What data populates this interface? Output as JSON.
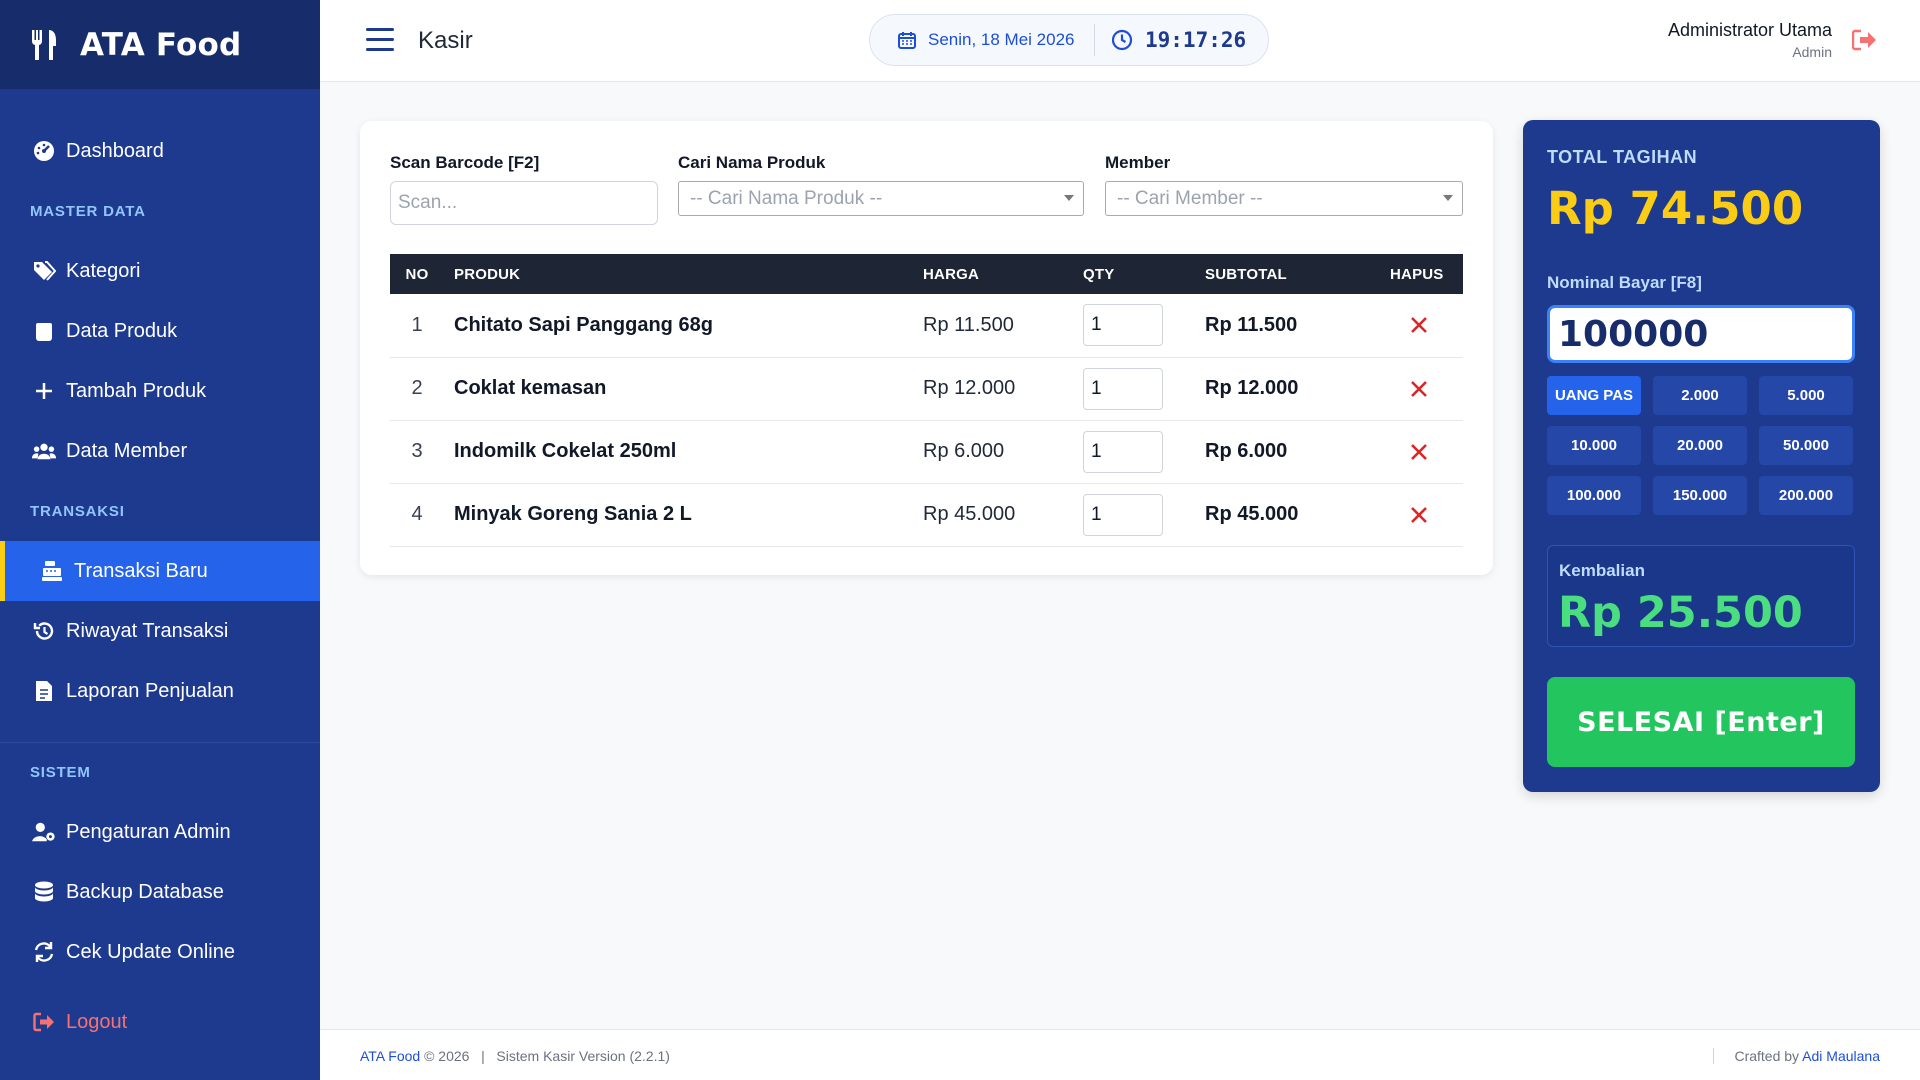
{
  "app": {
    "name": "ATA Food"
  },
  "sidebar": {
    "dashboard": "Dashboard",
    "section_master": "MASTER DATA",
    "kategori": "Kategori",
    "data_produk": "Data Produk",
    "tambah_produk": "Tambah Produk",
    "data_member": "Data Member",
    "section_transaksi": "TRANSAKSI",
    "transaksi_baru": "Transaksi Baru",
    "riwayat": "Riwayat Transaksi",
    "laporan": "Laporan Penjualan",
    "section_sistem": "SISTEM",
    "pengaturan": "Pengaturan Admin",
    "backup": "Backup Database",
    "update": "Cek Update Online",
    "logout": "Logout"
  },
  "header": {
    "title": "Kasir",
    "date": "Senin, 18 Mei 2026",
    "time": "19:17:26",
    "user_name": "Administrator Utama",
    "user_role": "Admin"
  },
  "form": {
    "barcode_label": "Scan Barcode [F2]",
    "barcode_placeholder": "Scan...",
    "product_label": "Cari Nama Produk",
    "product_placeholder": "-- Cari Nama Produk --",
    "member_label": "Member",
    "member_placeholder": "-- Cari Member --"
  },
  "table": {
    "headers": [
      "NO",
      "PRODUK",
      "HARGA",
      "QTY",
      "SUBTOTAL",
      "HAPUS"
    ],
    "rows": [
      {
        "no": "1",
        "product": "Chitato Sapi Panggang 68g",
        "price": "Rp 11.500",
        "qty": "1",
        "subtotal": "Rp 11.500"
      },
      {
        "no": "2",
        "product": "Coklat kemasan",
        "price": "Rp 12.000",
        "qty": "1",
        "subtotal": "Rp 12.000"
      },
      {
        "no": "3",
        "product": "Indomilk Cokelat 250ml",
        "price": "Rp 6.000",
        "qty": "1",
        "subtotal": "Rp 6.000"
      },
      {
        "no": "4",
        "product": "Minyak Goreng Sania 2 L",
        "price": "Rp 45.000",
        "qty": "1",
        "subtotal": "Rp 45.000"
      }
    ]
  },
  "payment": {
    "total_label": "TOTAL TAGIHAN",
    "total_value": "Rp 74.500",
    "pay_label": "Nominal Bayar [F8]",
    "pay_value": "100000",
    "quick_amounts": [
      "UANG PAS",
      "2.000",
      "5.000",
      "10.000",
      "20.000",
      "50.000",
      "100.000",
      "150.000",
      "200.000"
    ],
    "change_label": "Kembalian",
    "change_value": "Rp 25.500",
    "finish_label": "SELESAI [Enter]"
  },
  "footer": {
    "brand": "ATA Food",
    "copyright": "© 2026",
    "separator": "|",
    "version": "Sistem Kasir Version (2.2.1)",
    "crafted_by": "Crafted by",
    "author": "Adi Maulana"
  },
  "colors": {
    "sidebar": "#1d3a8f",
    "accent": "#2563eb",
    "total": "#facc15",
    "change": "#4ade80",
    "finish": "#22c55e",
    "delete": "#dc2626"
  },
  "icons": [
    "utensils-icon",
    "menu-icon",
    "calendar-icon",
    "clock-icon",
    "sign-out-icon",
    "dashboard-icon",
    "tags-icon",
    "box-icon",
    "plus-icon",
    "users-icon",
    "cash-register-icon",
    "history-icon",
    "report-icon",
    "user-cog-icon",
    "database-icon",
    "sync-icon",
    "close-icon"
  ]
}
